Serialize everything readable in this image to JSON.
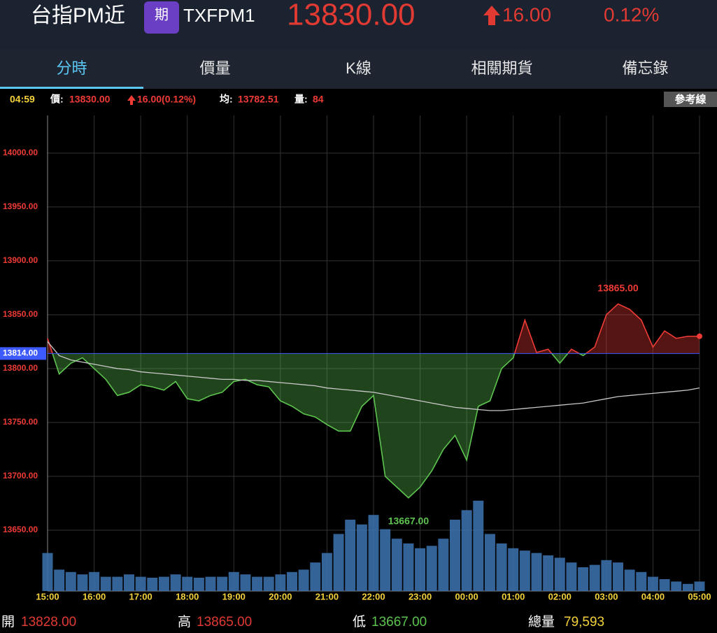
{
  "header": {
    "name": "台指PM近",
    "badge": "期",
    "code": "TXFPM1",
    "price": "13830.00",
    "change": "16.00",
    "change_pct": "0.12%"
  },
  "tabs": [
    "分時",
    "價量",
    "K線",
    "相關期貨",
    "備忘錄"
  ],
  "info": {
    "time": "04:59",
    "price_label": "價:",
    "price": "13830.00",
    "change": "16.00(0.12%)",
    "avg_label": "均:",
    "avg": "13782.51",
    "vol_label": "量:",
    "vol": "84"
  },
  "button": "參考線",
  "footer": {
    "open_label": "開",
    "open": "13828.00",
    "high_label": "高",
    "high": "13865.00",
    "low_label": "低",
    "low": "13667.00",
    "total_label": "總量",
    "total": "79,593"
  },
  "chart_data": {
    "type": "line",
    "categories": [
      "15:00",
      null,
      null,
      null,
      "16:00",
      null,
      null,
      null,
      "17:00",
      null,
      null,
      null,
      "18:00",
      null,
      null,
      null,
      "19:00",
      null,
      null,
      null,
      "20:00",
      null,
      null,
      null,
      "21:00",
      null,
      null,
      null,
      "22:00",
      null,
      null,
      null,
      "23:00",
      null,
      null,
      null,
      "00:00",
      null,
      null,
      null,
      "01:00",
      null,
      null,
      null,
      "02:00",
      null,
      null,
      null,
      "03:00",
      null,
      null,
      null,
      "04:00",
      null,
      null,
      null,
      "05:00"
    ],
    "series": [
      {
        "color": "#ef3b36",
        "down_color": "#5cc44f",
        "values": [
          13828,
          13795,
          13805,
          13810,
          13800,
          13790,
          13775,
          13778,
          13785,
          13783,
          13780,
          13788,
          13772,
          13770,
          13775,
          13778,
          13788,
          13790,
          13785,
          13783,
          13770,
          13765,
          13758,
          13755,
          13748,
          13742,
          13742,
          13765,
          13775,
          13700,
          13690,
          13680,
          13690,
          13705,
          13725,
          13738,
          13715,
          13765,
          13770,
          13800,
          13810,
          13845,
          13815,
          13818,
          13805,
          13818,
          13812,
          13820,
          13850,
          13860,
          13855,
          13845,
          13820,
          13835,
          13828,
          13830,
          13830
        ]
      },
      {
        "color": "#c8c8c8",
        "values": [
          13825,
          13812,
          13808,
          13806,
          13804,
          13802,
          13800,
          13799,
          13797,
          13796,
          13795,
          13794,
          13793,
          13792,
          13791,
          13790,
          13790,
          13789,
          13789,
          13788,
          13787,
          13786,
          13785,
          13784,
          13782,
          13781,
          13780,
          13779,
          13778,
          13776,
          13774,
          13772,
          13770,
          13768,
          13766,
          13764,
          13763,
          13762,
          13761,
          13761,
          13762,
          13763,
          13764,
          13765,
          13766,
          13767,
          13768,
          13770,
          13772,
          13774,
          13775,
          13776,
          13777,
          13778,
          13779,
          13780,
          13782
        ]
      },
      {
        "type": "bar",
        "axis": "y2",
        "color": "#3a6ea8",
        "values": [
          80,
          45,
          40,
          35,
          40,
          30,
          30,
          35,
          30,
          28,
          30,
          35,
          30,
          28,
          30,
          30,
          40,
          35,
          30,
          30,
          35,
          40,
          45,
          60,
          80,
          120,
          150,
          140,
          160,
          130,
          110,
          100,
          90,
          95,
          110,
          150,
          170,
          190,
          120,
          100,
          90,
          85,
          80,
          75,
          70,
          60,
          50,
          55,
          65,
          60,
          45,
          40,
          30,
          25,
          20,
          15,
          20
        ]
      }
    ],
    "reference": {
      "value": 13814,
      "label": "13814.00",
      "color": "#3d5afe"
    },
    "annotations": [
      {
        "value": 13865,
        "label": "13865.00"
      },
      {
        "value": 13667,
        "label": "13667.00"
      }
    ],
    "ylim": [
      13593.5,
      14035
    ],
    "yticks": [
      {
        "value": 13650,
        "label": "13650.00"
      },
      {
        "value": 13700,
        "label": "13700.00"
      },
      {
        "value": 13750,
        "label": "13750.00"
      },
      {
        "value": 13800,
        "label": "13800.00"
      },
      {
        "value": 13850,
        "label": "13850.00"
      },
      {
        "value": 13900,
        "label": "13900.00"
      },
      {
        "value": 13950,
        "label": "13950.00"
      },
      {
        "value": 14000,
        "label": "14000.00"
      }
    ],
    "y2lim": [
      0,
      1000
    ],
    "grid": true
  }
}
